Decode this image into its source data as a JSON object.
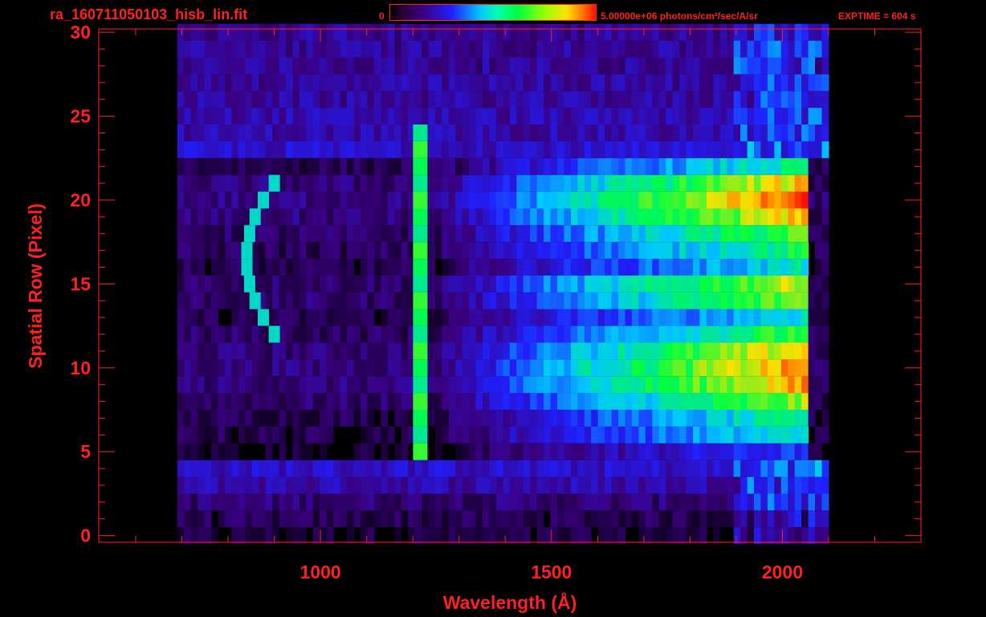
{
  "header": {
    "file_title": "ra_160711050103_hisb_lin.fit",
    "colorbar_min": "0",
    "colorbar_max": "5.00000e+06 photons/cm²/sec/A/sr",
    "exptime": "EXPTIME = 604 s"
  },
  "colors": {
    "axes": "#ff2020",
    "background": "#000000",
    "colormap": [
      "#000000",
      "#3a0080",
      "#2020ff",
      "#00c8ff",
      "#00ff40",
      "#ffe000",
      "#ff1000"
    ]
  },
  "chart_data": {
    "type": "heatmap",
    "title": "",
    "xlabel": "Wavelength (Å)",
    "ylabel": "Spatial Row (Pixel)",
    "xlim": [
      520,
      2300
    ],
    "ylim": [
      -0.4,
      30.2
    ],
    "x_ticks": [
      1000,
      1500,
      2000
    ],
    "y_ticks": [
      0,
      5,
      10,
      15,
      20,
      25,
      30
    ],
    "grid": false,
    "colorbar": {
      "min": 0,
      "max": 5000000,
      "units": "photons/cm²/sec/A/sr",
      "colormap": "rainbow"
    },
    "data_extent": {
      "x": [
        690,
        2100
      ],
      "y": [
        0,
        30
      ]
    },
    "rows": [
      {
        "row": 0,
        "level": 0.02
      },
      {
        "row": 1,
        "level": 0.05
      },
      {
        "row": 2,
        "level": 0.1
      },
      {
        "row": 3,
        "level": 0.18
      },
      {
        "row": 4,
        "level": 0.22
      },
      {
        "row": 5,
        "level": 0.35
      },
      {
        "row": 6,
        "level": 0.55
      },
      {
        "row": 7,
        "level": 0.6
      },
      {
        "row": 8,
        "level": 0.75
      },
      {
        "row": 9,
        "level": 0.88
      },
      {
        "row": 10,
        "level": 0.9
      },
      {
        "row": 11,
        "level": 0.85
      },
      {
        "row": 12,
        "level": 0.7
      },
      {
        "row": 13,
        "level": 0.55
      },
      {
        "row": 14,
        "level": 0.75
      },
      {
        "row": 15,
        "level": 0.8
      },
      {
        "row": 16,
        "level": 0.55
      },
      {
        "row": 17,
        "level": 0.65
      },
      {
        "row": 18,
        "level": 0.72
      },
      {
        "row": 19,
        "level": 0.85
      },
      {
        "row": 20,
        "level": 0.95
      },
      {
        "row": 21,
        "level": 0.85
      },
      {
        "row": 22,
        "level": 0.6
      },
      {
        "row": 23,
        "level": 0.22
      },
      {
        "row": 24,
        "level": 0.18
      },
      {
        "row": 25,
        "level": 0.18
      },
      {
        "row": 26,
        "level": 0.16
      },
      {
        "row": 27,
        "level": 0.16
      },
      {
        "row": 28,
        "level": 0.15
      },
      {
        "row": 29,
        "level": 0.15
      },
      {
        "row": 30,
        "level": 0.15
      }
    ],
    "features": [
      {
        "name": "arc",
        "x_range": [
          840,
          900
        ],
        "rows": [
          12,
          21
        ],
        "level": 0.55
      },
      {
        "name": "emission line",
        "x": 1216,
        "rows": [
          5,
          24
        ],
        "level": 0.6
      }
    ]
  }
}
